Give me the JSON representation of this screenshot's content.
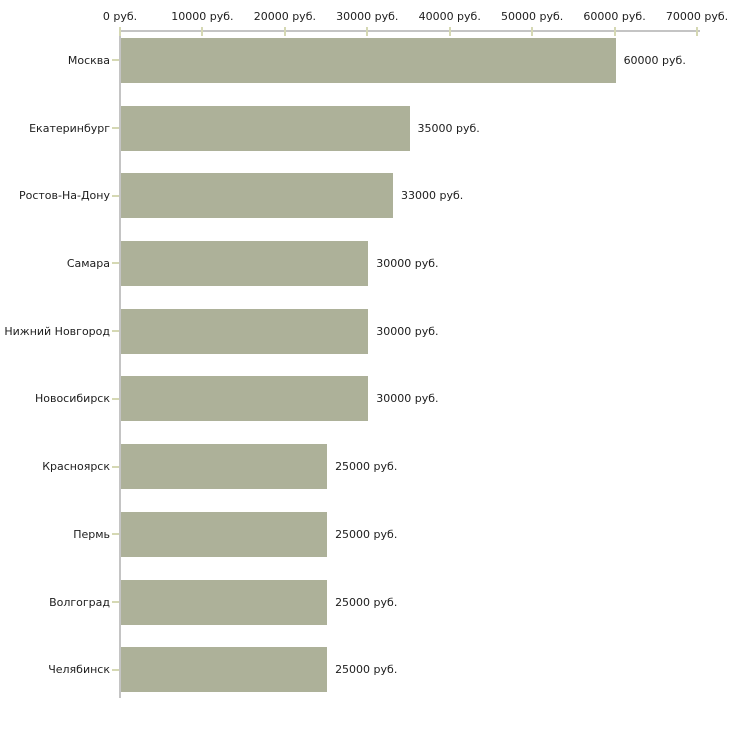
{
  "chart_data": {
    "type": "bar",
    "orientation": "horizontal",
    "title": "",
    "unit": "руб.",
    "categories": [
      "Москва",
      "Екатеринбург",
      "Ростов-На-Дону",
      "Самара",
      "Нижний Новгород",
      "Новосибирск",
      "Красноярск",
      "Пермь",
      "Волгоград",
      "Челябинск"
    ],
    "values": [
      60000,
      35000,
      33000,
      30000,
      30000,
      30000,
      25000,
      25000,
      25000,
      25000
    ],
    "value_labels": [
      "60000 руб.",
      "35000 руб.",
      "33000 руб.",
      "30000 руб.",
      "30000 руб.",
      "30000 руб.",
      "25000 руб.",
      "25000 руб.",
      "25000 руб.",
      "25000 руб."
    ],
    "x_axis": {
      "position": "top",
      "min": 0,
      "max": 70000,
      "step": 10000,
      "tick_labels": [
        "0 руб.",
        "10000 руб.",
        "20000 руб.",
        "30000 руб.",
        "40000 руб.",
        "50000 руб.",
        "60000 руб.",
        "70000 руб."
      ]
    },
    "grid": false,
    "legend": false,
    "colors": {
      "bar": "#adb199",
      "axis_line": "#c4c4c4",
      "tick_mark": "#d5d8b3",
      "text": "#1d1d1d",
      "background": "#ffffff"
    }
  }
}
